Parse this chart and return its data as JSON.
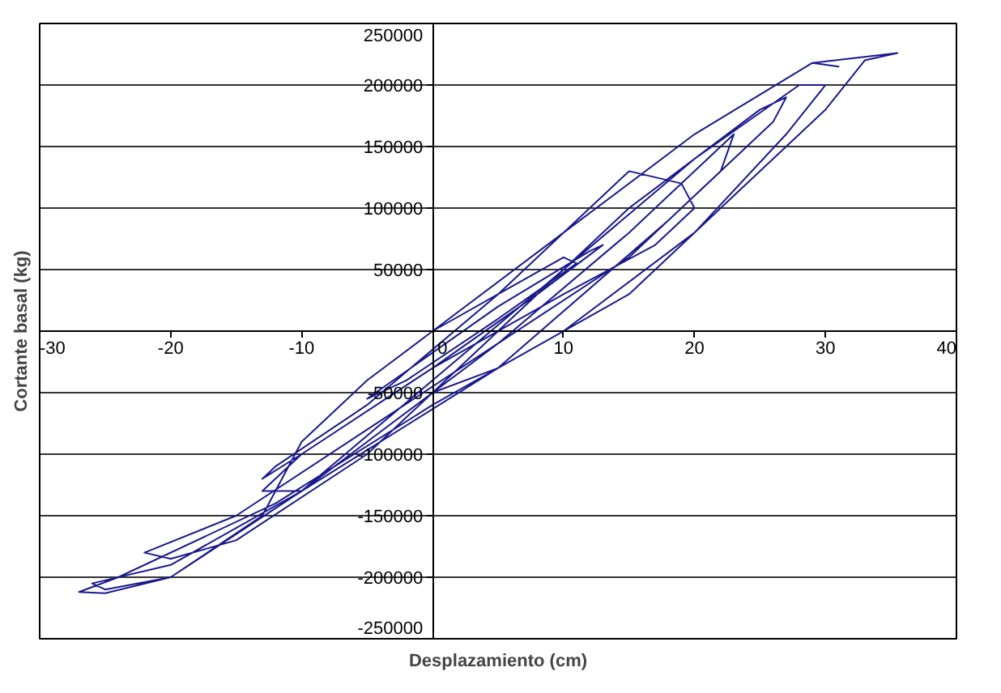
{
  "chart_data": {
    "type": "line",
    "xlabel": "Desplazamiento (cm)",
    "ylabel": "Cortante basal (kg)",
    "x": [
      0,
      5,
      10,
      11,
      5,
      -2,
      -5,
      -3,
      5,
      12,
      13,
      8,
      0,
      -10,
      -13,
      -12,
      -5,
      5,
      15,
      19,
      20,
      17,
      10,
      0,
      -10,
      -13,
      -10,
      -5,
      5,
      15,
      22,
      23,
      22,
      15,
      5,
      -5,
      -15,
      -22,
      -20,
      -15,
      -5,
      5,
      15,
      25,
      27,
      26,
      18,
      5,
      -10,
      -20,
      -26,
      -25,
      -20,
      -10,
      0,
      10,
      20,
      28,
      30,
      27,
      20,
      10,
      0,
      -12,
      -24,
      -27,
      -25,
      -20,
      -13,
      -10,
      -5,
      0,
      10,
      20,
      29,
      31,
      29,
      35.5,
      33,
      30,
      23,
      15,
      5,
      0
    ],
    "series": [
      {
        "color": "#1a1a8c",
        "values": [
          0,
          30000,
          60000,
          55000,
          10000,
          -40000,
          -55000,
          -40000,
          20000,
          65000,
          70000,
          30000,
          -30000,
          -100000,
          -120000,
          -110000,
          -60000,
          30000,
          130000,
          120000,
          100000,
          70000,
          30000,
          -30000,
          -100000,
          -130000,
          -130000,
          -90000,
          -10000,
          80000,
          150000,
          160000,
          130000,
          60000,
          -10000,
          -80000,
          -150000,
          -180000,
          -185000,
          -170000,
          -100000,
          0,
          100000,
          180000,
          190000,
          170000,
          90000,
          -30000,
          -130000,
          -190000,
          -205000,
          -210000,
          -200000,
          -130000,
          -40000,
          50000,
          140000,
          200000,
          200000,
          160000,
          80000,
          0,
          -60000,
          -140000,
          -200000,
          -212000,
          -213000,
          -200000,
          -150000,
          -90000,
          -40000,
          0,
          80000,
          160000,
          218000,
          215000,
          218000,
          226000,
          220000,
          180000,
          110000,
          30000,
          -30000,
          -50000
        ]
      }
    ],
    "xlim": [
      -30,
      40
    ],
    "xticks": [
      -30,
      -20,
      -10,
      0,
      10,
      20,
      30,
      40
    ],
    "ylim": [
      -250000,
      250000
    ],
    "yticks": [
      -250000,
      -200000,
      -150000,
      -100000,
      -50000,
      {
        "value": 0,
        "label": null
      },
      50000,
      100000,
      150000,
      200000,
      250000
    ],
    "grid": "y",
    "marker": "none",
    "line_style": "solid"
  }
}
